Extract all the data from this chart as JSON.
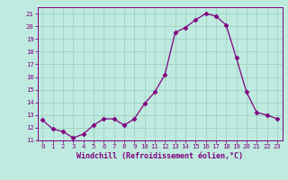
{
  "x": [
    0,
    1,
    2,
    3,
    4,
    5,
    6,
    7,
    8,
    9,
    10,
    11,
    12,
    13,
    14,
    15,
    16,
    17,
    18,
    19,
    20,
    21,
    22,
    23
  ],
  "y": [
    12.6,
    11.9,
    11.7,
    11.2,
    11.5,
    12.2,
    12.7,
    12.7,
    12.2,
    12.7,
    13.9,
    14.8,
    16.2,
    19.5,
    19.9,
    20.5,
    21.0,
    20.8,
    20.1,
    17.5,
    14.8,
    13.2,
    13.0,
    12.7
  ],
  "line_color": "#800080",
  "marker": "D",
  "marker_size": 2.5,
  "bg_color": "#beeadf",
  "grid_color": "#99ccbb",
  "xlabel": "Windchill (Refroidissement éolien,°C)",
  "xlim": [
    -0.5,
    23.5
  ],
  "ylim": [
    11,
    21.5
  ],
  "yticks": [
    11,
    12,
    13,
    14,
    15,
    16,
    17,
    18,
    19,
    20,
    21
  ],
  "xticks": [
    0,
    1,
    2,
    3,
    4,
    5,
    6,
    7,
    8,
    9,
    10,
    11,
    12,
    13,
    14,
    15,
    16,
    17,
    18,
    19,
    20,
    21,
    22,
    23
  ],
  "tick_color": "#800080",
  "label_color": "#800080",
  "tick_fontsize": 5.2,
  "xlabel_fontsize": 6.0,
  "spine_color": "#800080"
}
